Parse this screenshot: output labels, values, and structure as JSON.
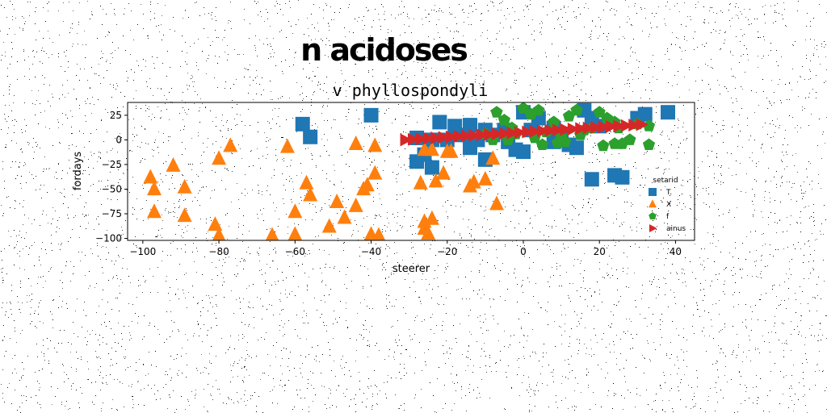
{
  "chart_data": {
    "type": "scatter",
    "suptitle": "n acidoses",
    "title": "v phyllospondyli",
    "xlabel": "steerer",
    "ylabel": "fordays",
    "xlim": [
      -104,
      45
    ],
    "ylim": [
      -102,
      38
    ],
    "xticks": [
      -100,
      -80,
      -60,
      -40,
      -20,
      0,
      20,
      40
    ],
    "yticks": [
      25,
      0,
      -25,
      -50,
      -75,
      -100
    ],
    "legend": {
      "title": "setarid",
      "position": "lower-right"
    },
    "grid": false,
    "series": [
      {
        "name": "T.",
        "marker": "square",
        "color": "#1f77b4",
        "points": [
          [
            -58,
            16
          ],
          [
            -56,
            3
          ],
          [
            -40,
            25
          ],
          [
            -22,
            18
          ],
          [
            -18,
            14
          ],
          [
            -14,
            15
          ],
          [
            -10,
            10
          ],
          [
            -8,
            5
          ],
          [
            -5,
            10
          ],
          [
            -12,
            0
          ],
          [
            -14,
            -8
          ],
          [
            -10,
            -20
          ],
          [
            -26,
            -15
          ],
          [
            -28,
            -22
          ],
          [
            -24,
            -28
          ],
          [
            -28,
            2
          ],
          [
            -24,
            0
          ],
          [
            -20,
            0
          ],
          [
            -16,
            5
          ],
          [
            -4,
            -2
          ],
          [
            -2,
            -10
          ],
          [
            0,
            -12
          ],
          [
            0,
            28
          ],
          [
            4,
            22
          ],
          [
            2,
            10
          ],
          [
            8,
            12
          ],
          [
            10,
            6
          ],
          [
            12,
            -5
          ],
          [
            14,
            -8
          ],
          [
            16,
            30
          ],
          [
            18,
            22
          ],
          [
            20,
            14
          ],
          [
            18,
            -40
          ],
          [
            24,
            -36
          ],
          [
            26,
            -38
          ],
          [
            30,
            22
          ],
          [
            32,
            26
          ],
          [
            38,
            28
          ],
          [
            8,
            -2
          ]
        ]
      },
      {
        "name": "X",
        "marker": "triangle",
        "color": "#ff7f0e",
        "points": [
          [
            -98,
            -38
          ],
          [
            -97,
            -50
          ],
          [
            -97,
            -73
          ],
          [
            -92,
            -26
          ],
          [
            -89,
            -48
          ],
          [
            -89,
            -77
          ],
          [
            -81,
            -86
          ],
          [
            -80,
            -97
          ],
          [
            -80,
            -19
          ],
          [
            -77,
            -6
          ],
          [
            -66,
            -97
          ],
          [
            -62,
            -7
          ],
          [
            -60,
            -73
          ],
          [
            -60,
            -96
          ],
          [
            -57,
            -44
          ],
          [
            -56,
            -56
          ],
          [
            -51,
            -88
          ],
          [
            -49,
            -63
          ],
          [
            -47,
            -79
          ],
          [
            -44,
            -67
          ],
          [
            -44,
            -4
          ],
          [
            -42,
            -50
          ],
          [
            -41,
            -46
          ],
          [
            -40,
            -96
          ],
          [
            -39,
            -6
          ],
          [
            -39,
            -34
          ],
          [
            -38,
            -97
          ],
          [
            -27,
            -44
          ],
          [
            -26,
            -90
          ],
          [
            -26,
            -83
          ],
          [
            -25,
            -95
          ],
          [
            -24,
            -80
          ],
          [
            -23,
            -42
          ],
          [
            -21,
            -34
          ],
          [
            -20,
            -12
          ],
          [
            -19,
            -12
          ],
          [
            -14,
            -47
          ],
          [
            -13,
            -43
          ],
          [
            -10,
            -40
          ],
          [
            -8,
            -19
          ],
          [
            -7,
            -65
          ],
          [
            -26,
            -10
          ],
          [
            -24,
            -10
          ]
        ]
      },
      {
        "name": "f",
        "marker": "pentagon",
        "color": "#2ca02c",
        "points": [
          [
            -7,
            28
          ],
          [
            -5,
            20
          ],
          [
            -3,
            12
          ],
          [
            0,
            32
          ],
          [
            2,
            26
          ],
          [
            -2,
            6
          ],
          [
            3,
            2
          ],
          [
            5,
            -5
          ],
          [
            8,
            18
          ],
          [
            10,
            3
          ],
          [
            12,
            24
          ],
          [
            14,
            30
          ],
          [
            16,
            10
          ],
          [
            18,
            12
          ],
          [
            20,
            28
          ],
          [
            22,
            22
          ],
          [
            24,
            18
          ],
          [
            25,
            12
          ],
          [
            21,
            -6
          ],
          [
            24,
            -4
          ],
          [
            28,
            0
          ],
          [
            30,
            16
          ],
          [
            33,
            14
          ],
          [
            33,
            -5
          ],
          [
            26,
            -4
          ],
          [
            4,
            30
          ],
          [
            9,
            -3
          ],
          [
            -8,
            0
          ],
          [
            -4,
            0
          ],
          [
            -10,
            6
          ],
          [
            6,
            8
          ],
          [
            11,
            -2
          ],
          [
            15,
            5
          ]
        ]
      },
      {
        "name": "ainus",
        "marker": "triangle-right",
        "color": "#d62728",
        "points": [
          [
            -31,
            0
          ],
          [
            -29,
            0.5
          ],
          [
            -27,
            1
          ],
          [
            -25,
            1.5
          ],
          [
            -23,
            2
          ],
          [
            -21,
            2.5
          ],
          [
            -19,
            3
          ],
          [
            -17,
            3.5
          ],
          [
            -15,
            4
          ],
          [
            -13,
            4.5
          ],
          [
            -11,
            5
          ],
          [
            -9,
            5.5
          ],
          [
            -7,
            6
          ],
          [
            -5,
            6.5
          ],
          [
            -3,
            7
          ],
          [
            -1,
            7.5
          ],
          [
            1,
            8
          ],
          [
            3,
            8.5
          ],
          [
            5,
            9
          ],
          [
            7,
            9.5
          ],
          [
            9,
            10
          ],
          [
            11,
            10.5
          ],
          [
            13,
            11
          ],
          [
            15,
            11.5
          ],
          [
            17,
            12
          ],
          [
            19,
            12.5
          ],
          [
            21,
            13
          ],
          [
            23,
            13.5
          ],
          [
            25,
            14
          ],
          [
            27,
            14.5
          ],
          [
            29,
            15
          ],
          [
            31,
            15.5
          ]
        ]
      }
    ]
  }
}
